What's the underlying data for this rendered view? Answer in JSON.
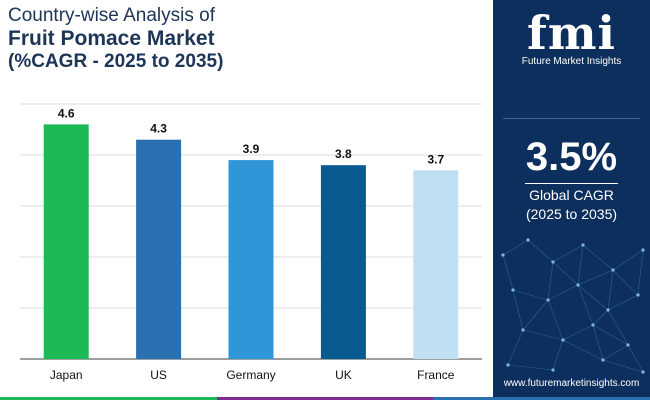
{
  "title": {
    "line1": "Country-wise Analysis of",
    "line2": "Fruit Pomace Market",
    "line3": "(%CAGR - 2025 to 2035)"
  },
  "chart_data": {
    "type": "bar",
    "title": "Country-wise Analysis of Fruit Pomace Market (%CAGR - 2025 to 2035)",
    "categories": [
      "Japan",
      "US",
      "Germany",
      "UK",
      "France"
    ],
    "values": [
      4.6,
      4.3,
      3.9,
      3.8,
      3.7
    ],
    "colors": [
      "#1db954",
      "#2a6fb0",
      "#2f96d8",
      "#0a5a92",
      "#bfe0f2"
    ],
    "xlabel": "",
    "ylabel": "",
    "ylim": [
      0,
      5
    ],
    "grid": true,
    "value_labels": [
      "4.6",
      "4.3",
      "3.9",
      "3.8",
      "3.7"
    ]
  },
  "panel": {
    "logo_text": "fmi",
    "logo_subtitle": "Future Market Insights",
    "cagr_value": "3.5%",
    "cagr_label": "Global CAGR",
    "cagr_period": "(2025 to 2035)",
    "website": "www.futuremarketinsights.com"
  },
  "colors": {
    "panel_bg": "#0d2f5e",
    "title": "#1d3557",
    "stripe": [
      "#1db954",
      "#7b2d8e",
      "#2a6fb0"
    ]
  }
}
